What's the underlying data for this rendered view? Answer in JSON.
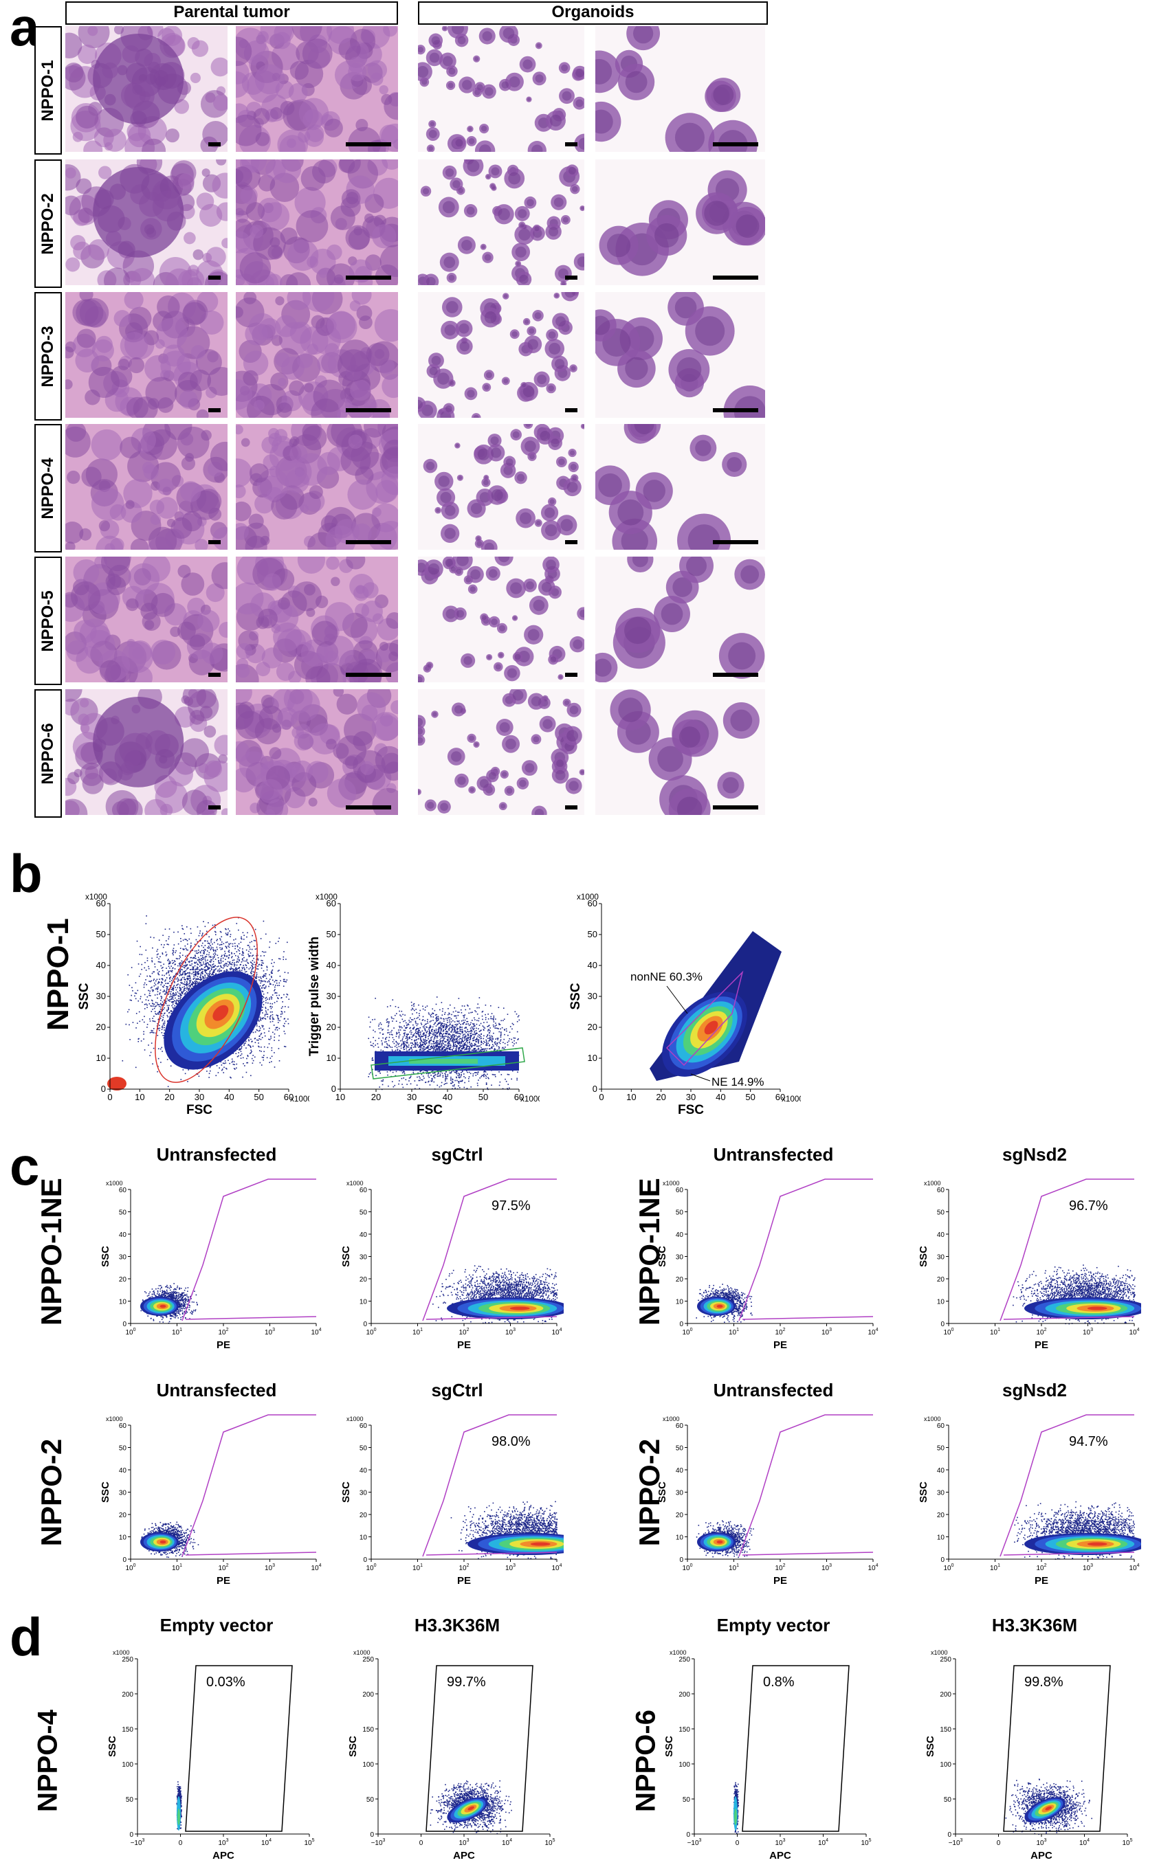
{
  "panel_letters": {
    "a": "a",
    "b": "b",
    "c": "c",
    "d": "d"
  },
  "panel_a": {
    "headers": [
      "Parental tumor",
      "Organoids"
    ],
    "rows": [
      "NPPO-1",
      "NPPO-2",
      "NPPO-3",
      "NPPO-4",
      "NPPO-5",
      "NPPO-6"
    ],
    "colors": {
      "stain_pink": "#e7b6d6",
      "stain_purple": "#8a4fa3",
      "background": "#f6eef3"
    }
  },
  "panel_b": {
    "row_label": "NPPO-1",
    "plots": [
      {
        "ylabel": "SSC",
        "xlabel": "FSC",
        "x_unit": "x1000",
        "y_unit": "x1000",
        "x_ticks": [
          "0",
          "10",
          "20",
          "30",
          "40",
          "50",
          "60"
        ],
        "y_ticks": [
          "0",
          "10",
          "20",
          "30",
          "40",
          "50",
          "60"
        ],
        "gate_color": "#d9332b"
      },
      {
        "ylabel": "Trigger pulse width",
        "xlabel": "FSC",
        "x_unit": "x1000",
        "y_unit": "x1000",
        "x_ticks": [
          "10",
          "20",
          "30",
          "40",
          "50",
          "60"
        ],
        "y_ticks": [
          "0",
          "10",
          "20",
          "30",
          "40",
          "50",
          "60"
        ],
        "gate_color": "#2fa84a"
      },
      {
        "ylabel": "SSC",
        "xlabel": "FSC",
        "x_unit": "x1000",
        "y_unit": "x1000",
        "x_ticks": [
          "0",
          "10",
          "20",
          "30",
          "40",
          "50",
          "60"
        ],
        "y_ticks": [
          "0",
          "10",
          "20",
          "30",
          "40",
          "50",
          "60"
        ],
        "annotations": [
          "nonNE 60.3%",
          "NE 14.9%"
        ]
      }
    ]
  },
  "panel_c": {
    "row_labels": [
      "NPPO-1NE",
      "NPPO-2"
    ],
    "titles": [
      [
        "Untransfected",
        "sgCtrl",
        "Untransfected",
        "sgNsd2"
      ],
      [
        "Untransfected",
        "sgCtrl",
        "Untransfected",
        "sgNsd2"
      ]
    ],
    "percentages": [
      [
        "",
        "97.5%",
        "",
        "96.7%"
      ],
      [
        "",
        "98.0%",
        "",
        "94.7%"
      ]
    ],
    "ylabel": "SSC",
    "xlabel": "PE",
    "y_unit": "x1000",
    "y_ticks": [
      "0",
      "10",
      "20",
      "30",
      "40",
      "50",
      "60"
    ],
    "x_ticks": [
      "10^0",
      "10^1",
      "10^2",
      "10^3",
      "10^4"
    ],
    "gate_color": "#b03fc4"
  },
  "panel_d": {
    "row_labels": [
      "NPPO-4",
      "NPPO-6"
    ],
    "titles": [
      "Empty vector",
      "H3.3K36M",
      "Empty vector",
      "H3.3K36M"
    ],
    "percentages": [
      "0.03%",
      "99.7%",
      "0.8%",
      "99.8%"
    ],
    "ylabel": "SSC",
    "xlabel": "APC",
    "y_unit": "x1000",
    "y_ticks": [
      "0",
      "50",
      "100",
      "150",
      "200",
      "250"
    ],
    "x_ticks": [
      "−10^3",
      "0",
      "10^3",
      "10^4",
      "10^5"
    ]
  }
}
